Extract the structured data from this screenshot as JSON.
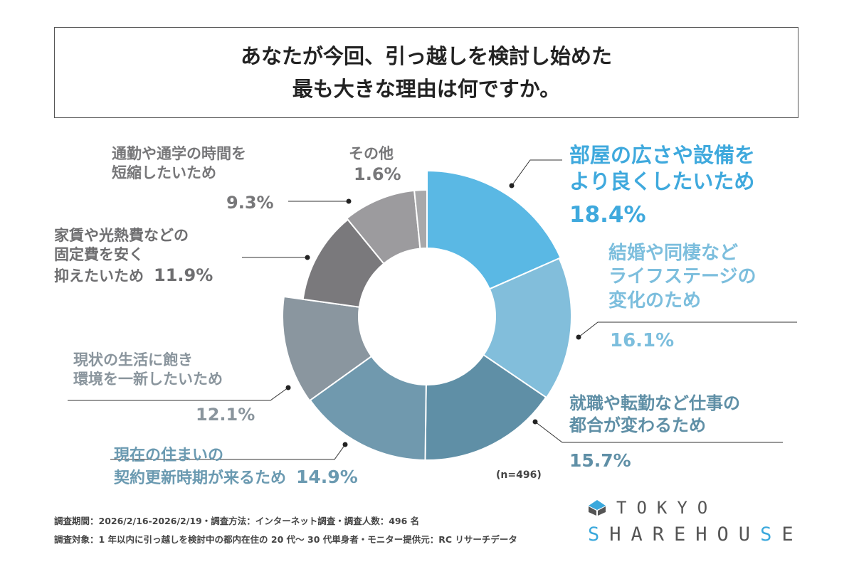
{
  "title": {
    "line1": "あなたが今回、引っ越しを検討し始めた",
    "line2": "最も大きな理由は何ですか。"
  },
  "chart_data": {
    "type": "pie",
    "donut": true,
    "start": "top, clockwise",
    "slices": [
      {
        "label": [
          "部屋の広さや設備を",
          "より良くしたいため"
        ],
        "value": 18.4,
        "pct_text": "18.4%",
        "color": "#5ab8e4",
        "text_color": "#3fa9dd"
      },
      {
        "label": [
          "結婚や同棲など",
          "ライフステージの",
          "変化のため"
        ],
        "value": 16.1,
        "pct_text": "16.1%",
        "color": "#82bedb",
        "text_color": "#7cbedd"
      },
      {
        "label": [
          "就職や転勤など仕事の",
          "都合が変わるため"
        ],
        "value": 15.7,
        "pct_text": "15.7%",
        "color": "#5f8fa6",
        "text_color": "#5f8fa6"
      },
      {
        "label": [
          "現在の住まいの",
          "契約更新時期が来るため"
        ],
        "value": 14.9,
        "pct_text": "14.9%",
        "color": "#7099ae",
        "text_color": "#6b9ab1"
      },
      {
        "label": [
          "現状の生活に飽き",
          "環境を一新したいため"
        ],
        "value": 12.1,
        "pct_text": "12.1%",
        "color": "#8a969f",
        "text_color": "#8a959d"
      },
      {
        "label": [
          "家賃や光熱費などの",
          "固定費を安く",
          "抑えたいため"
        ],
        "value": 11.9,
        "pct_text": "11.9%",
        "color": "#7a797c",
        "text_color": "#6e6e70"
      },
      {
        "label": [
          "通勤や通学の時間を",
          "短縮したいため"
        ],
        "value": 9.3,
        "pct_text": "9.3%",
        "color": "#9c9b9e",
        "text_color": "#777779"
      },
      {
        "label": [
          "その他"
        ],
        "value": 1.6,
        "pct_text": "1.6%",
        "color": "#a8a8aa",
        "text_color": "#777779"
      }
    ],
    "n_label": "(n=496)"
  },
  "notes": {
    "line1": "調査期間：2026/2/16-2026/2/19・調査方法：インターネット調査・調査人数：496 名",
    "line2": "調査対象：1 年以内に引っ越しを検討中の都内在住の 20 代～ 30 代単身者・モニター提供元：RC リサーチデータ"
  },
  "logo": {
    "line1": "TOKYO",
    "line2": "SHAREHOUSE"
  }
}
